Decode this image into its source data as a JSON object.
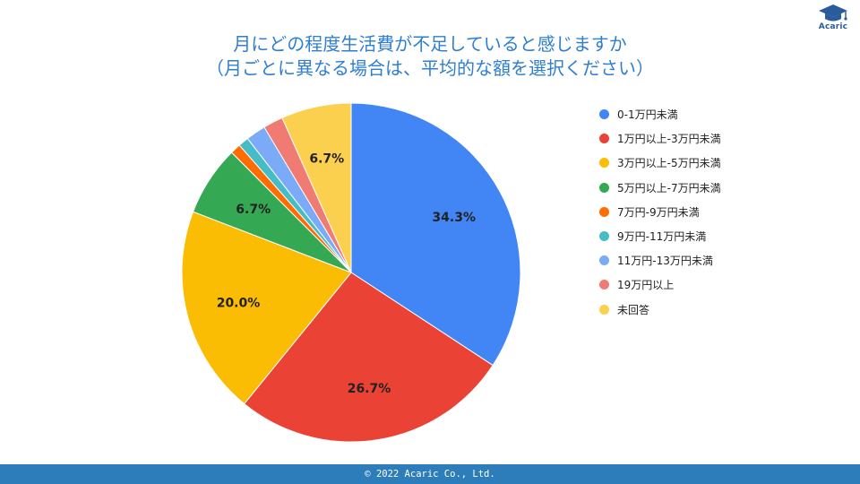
{
  "brand": {
    "logo_text": "Acaric",
    "icon": "graduation-cap-icon",
    "color": "#2a5b9c"
  },
  "title_lines": [
    "月にどの程度生活費が不足していると感じますか",
    "（月ごとに異なる場合は、平均的な額を選択ください）"
  ],
  "footer": {
    "copyright": "© 2022 Acaric Co., Ltd."
  },
  "chart_data": {
    "type": "pie",
    "start_angle": "12 o'clock, clockwise",
    "legend_position": "right",
    "slices": [
      {
        "label": "0-1万円未満",
        "value": 34.3,
        "data_label": "34.3%",
        "color": "#4285f4"
      },
      {
        "label": "1万円以上-3万円未満",
        "value": 26.7,
        "data_label": "26.7%",
        "color": "#ea4335"
      },
      {
        "label": "3万円以上-5万円未満",
        "value": 20.0,
        "data_label": "20.0%",
        "color": "#fbbc04"
      },
      {
        "label": "5万円以上-7万円未満",
        "value": 6.7,
        "data_label": "6.7%",
        "color": "#34a853"
      },
      {
        "label": "7万円-9万円未満",
        "value": 1.0,
        "data_label": "",
        "color": "#ff6d01"
      },
      {
        "label": "9万円-11万円未満",
        "value": 1.0,
        "data_label": "",
        "color": "#46bdc6"
      },
      {
        "label": "11万円-13万円未満",
        "value": 1.9,
        "data_label": "",
        "color": "#7baaf7"
      },
      {
        "label": "19万円以上",
        "value": 1.9,
        "data_label": "",
        "color": "#f07b72"
      },
      {
        "label": "未回答",
        "value": 6.7,
        "data_label": "6.7%",
        "color": "#fcd04f"
      }
    ]
  }
}
